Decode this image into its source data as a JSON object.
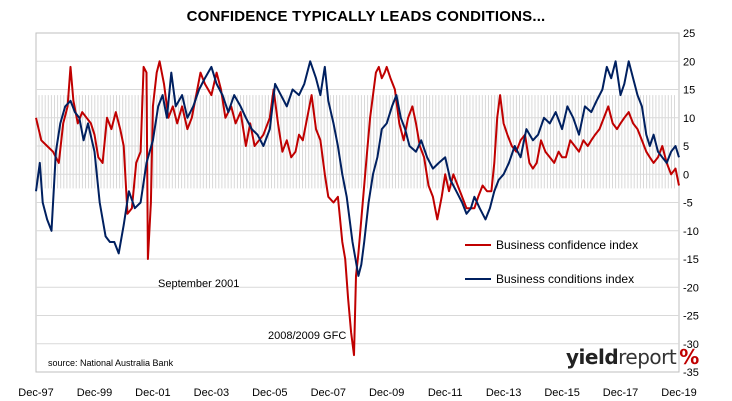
{
  "title": "CONFIDENCE TYPICALLY LEADS CONDITIONS...",
  "source": "source: National Australia Bank",
  "logo": {
    "yield": "yield",
    "report": "report",
    "pct": "%"
  },
  "annotations": {
    "sep2001": "September 2001",
    "gfc": "2008/2009 GFC"
  },
  "legend": {
    "confidence": "Business confidence index",
    "conditions": "Business conditions index"
  },
  "colors": {
    "confidence": "#c00000",
    "conditions": "#002060",
    "band": "#d9d9d9",
    "grid": "#d9d9d9",
    "logo_accent": "#c00000"
  },
  "chart_data": {
    "type": "line",
    "title": "CONFIDENCE TYPICALLY LEADS CONDITIONS...",
    "x_tick_labels": [
      "Dec-97",
      "Dec-99",
      "Dec-01",
      "Dec-03",
      "Dec-05",
      "Dec-07",
      "Dec-09",
      "Dec-11",
      "Dec-13",
      "Dec-15",
      "Dec-17",
      "Dec-19"
    ],
    "x_range": [
      1997.92,
      2019.92
    ],
    "ylim": [
      -35,
      25
    ],
    "y_ticks": [
      25,
      20,
      15,
      10,
      5,
      0,
      -5,
      -10,
      -15,
      -20,
      -25,
      -30,
      -35
    ],
    "grid": "horizontal",
    "legend_position": "right-center",
    "band_range": [
      -2.5,
      14
    ],
    "series": [
      {
        "name": "Business confidence index",
        "color": "#c00000",
        "points": [
          [
            1997.92,
            10
          ],
          [
            1998.1,
            6
          ],
          [
            1998.3,
            5
          ],
          [
            1998.5,
            4
          ],
          [
            1998.7,
            2
          ],
          [
            1998.85,
            9
          ],
          [
            1999.0,
            12
          ],
          [
            1999.1,
            19
          ],
          [
            1999.2,
            13
          ],
          [
            1999.35,
            9
          ],
          [
            1999.5,
            11
          ],
          [
            1999.65,
            10
          ],
          [
            1999.8,
            9
          ],
          [
            1999.92,
            7
          ],
          [
            2000.05,
            3
          ],
          [
            2000.2,
            2
          ],
          [
            2000.35,
            10
          ],
          [
            2000.5,
            8
          ],
          [
            2000.65,
            11
          ],
          [
            2000.8,
            8
          ],
          [
            2000.92,
            5
          ],
          [
            2001.05,
            -7
          ],
          [
            2001.2,
            -6
          ],
          [
            2001.35,
            2
          ],
          [
            2001.5,
            4
          ],
          [
            2001.6,
            19
          ],
          [
            2001.7,
            18
          ],
          [
            2001.75,
            -15
          ],
          [
            2001.85,
            -5
          ],
          [
            2001.92,
            12
          ],
          [
            2002.05,
            18
          ],
          [
            2002.15,
            20
          ],
          [
            2002.3,
            16
          ],
          [
            2002.45,
            10
          ],
          [
            2002.6,
            12
          ],
          [
            2002.75,
            9
          ],
          [
            2002.92,
            12
          ],
          [
            2003.1,
            8
          ],
          [
            2003.25,
            10
          ],
          [
            2003.4,
            14
          ],
          [
            2003.55,
            18
          ],
          [
            2003.7,
            16
          ],
          [
            2003.92,
            14
          ],
          [
            2004.1,
            18
          ],
          [
            2004.25,
            15
          ],
          [
            2004.4,
            10
          ],
          [
            2004.6,
            12
          ],
          [
            2004.75,
            9
          ],
          [
            2004.92,
            11
          ],
          [
            2005.1,
            5
          ],
          [
            2005.25,
            9
          ],
          [
            2005.4,
            5
          ],
          [
            2005.55,
            6
          ],
          [
            2005.7,
            7
          ],
          [
            2005.92,
            10
          ],
          [
            2006.05,
            15
          ],
          [
            2006.2,
            9
          ],
          [
            2006.35,
            4
          ],
          [
            2006.5,
            6
          ],
          [
            2006.65,
            3
          ],
          [
            2006.8,
            4
          ],
          [
            2006.92,
            7
          ],
          [
            2007.05,
            6
          ],
          [
            2007.2,
            10
          ],
          [
            2007.35,
            14
          ],
          [
            2007.5,
            8
          ],
          [
            2007.65,
            6
          ],
          [
            2007.8,
            0
          ],
          [
            2007.92,
            -4
          ],
          [
            2008.1,
            -5
          ],
          [
            2008.25,
            -4
          ],
          [
            2008.4,
            -12
          ],
          [
            2008.5,
            -15
          ],
          [
            2008.6,
            -22
          ],
          [
            2008.7,
            -28
          ],
          [
            2008.8,
            -32
          ],
          [
            2008.87,
            -18
          ],
          [
            2008.95,
            -14
          ],
          [
            2009.05,
            -8
          ],
          [
            2009.15,
            -2
          ],
          [
            2009.25,
            4
          ],
          [
            2009.35,
            10
          ],
          [
            2009.45,
            14
          ],
          [
            2009.55,
            18
          ],
          [
            2009.65,
            19
          ],
          [
            2009.75,
            17
          ],
          [
            2009.85,
            18
          ],
          [
            2009.92,
            19
          ],
          [
            2010.05,
            17
          ],
          [
            2010.2,
            15
          ],
          [
            2010.35,
            9
          ],
          [
            2010.5,
            6
          ],
          [
            2010.65,
            10
          ],
          [
            2010.8,
            12
          ],
          [
            2010.92,
            9
          ],
          [
            2011.05,
            5
          ],
          [
            2011.2,
            3
          ],
          [
            2011.35,
            -2
          ],
          [
            2011.5,
            -4
          ],
          [
            2011.65,
            -8
          ],
          [
            2011.8,
            -4
          ],
          [
            2011.92,
            0
          ],
          [
            2012.05,
            -3
          ],
          [
            2012.2,
            0
          ],
          [
            2012.35,
            -2
          ],
          [
            2012.5,
            -4
          ],
          [
            2012.65,
            -6
          ],
          [
            2012.8,
            -6
          ],
          [
            2012.92,
            -6
          ],
          [
            2013.05,
            -4
          ],
          [
            2013.2,
            -2
          ],
          [
            2013.35,
            -3
          ],
          [
            2013.5,
            -3
          ],
          [
            2013.6,
            2
          ],
          [
            2013.7,
            10
          ],
          [
            2013.8,
            14
          ],
          [
            2013.92,
            9
          ],
          [
            2014.05,
            7
          ],
          [
            2014.2,
            5
          ],
          [
            2014.35,
            4
          ],
          [
            2014.5,
            6
          ],
          [
            2014.65,
            7
          ],
          [
            2014.8,
            2
          ],
          [
            2014.92,
            1
          ],
          [
            2015.05,
            2
          ],
          [
            2015.2,
            6
          ],
          [
            2015.35,
            4
          ],
          [
            2015.5,
            3
          ],
          [
            2015.65,
            2
          ],
          [
            2015.8,
            4
          ],
          [
            2015.92,
            3
          ],
          [
            2016.05,
            3
          ],
          [
            2016.2,
            6
          ],
          [
            2016.35,
            5
          ],
          [
            2016.5,
            4
          ],
          [
            2016.65,
            6
          ],
          [
            2016.8,
            5
          ],
          [
            2016.92,
            6
          ],
          [
            2017.05,
            7
          ],
          [
            2017.2,
            8
          ],
          [
            2017.35,
            10
          ],
          [
            2017.5,
            12
          ],
          [
            2017.65,
            9
          ],
          [
            2017.8,
            8
          ],
          [
            2017.92,
            9
          ],
          [
            2018.05,
            10
          ],
          [
            2018.2,
            11
          ],
          [
            2018.35,
            9
          ],
          [
            2018.5,
            8
          ],
          [
            2018.65,
            6
          ],
          [
            2018.8,
            4
          ],
          [
            2018.92,
            3
          ],
          [
            2019.05,
            2
          ],
          [
            2019.2,
            3
          ],
          [
            2019.35,
            5
          ],
          [
            2019.5,
            2
          ],
          [
            2019.65,
            0
          ],
          [
            2019.8,
            1
          ],
          [
            2019.92,
            -2
          ]
        ]
      },
      {
        "name": "Business conditions index",
        "color": "#002060",
        "points": [
          [
            1997.92,
            -3
          ],
          [
            1998.05,
            2
          ],
          [
            1998.15,
            -5
          ],
          [
            1998.3,
            -8
          ],
          [
            1998.45,
            -10
          ],
          [
            1998.6,
            4
          ],
          [
            1998.75,
            9
          ],
          [
            1998.92,
            12
          ],
          [
            1999.1,
            13
          ],
          [
            1999.25,
            11
          ],
          [
            1999.4,
            10
          ],
          [
            1999.55,
            6
          ],
          [
            1999.7,
            9
          ],
          [
            1999.92,
            4
          ],
          [
            2000.1,
            -5
          ],
          [
            2000.3,
            -11
          ],
          [
            2000.45,
            -12
          ],
          [
            2000.6,
            -12
          ],
          [
            2000.75,
            -14
          ],
          [
            2000.92,
            -9
          ],
          [
            2001.1,
            -3
          ],
          [
            2001.3,
            -6
          ],
          [
            2001.5,
            -5
          ],
          [
            2001.7,
            2
          ],
          [
            2001.92,
            6
          ],
          [
            2002.1,
            12
          ],
          [
            2002.25,
            14
          ],
          [
            2002.4,
            10
          ],
          [
            2002.55,
            18
          ],
          [
            2002.7,
            12
          ],
          [
            2002.92,
            14
          ],
          [
            2003.1,
            10
          ],
          [
            2003.3,
            12
          ],
          [
            2003.5,
            15
          ],
          [
            2003.7,
            17
          ],
          [
            2003.92,
            19
          ],
          [
            2004.1,
            16
          ],
          [
            2004.3,
            14
          ],
          [
            2004.5,
            11
          ],
          [
            2004.7,
            14
          ],
          [
            2004.92,
            12
          ],
          [
            2005.1,
            10
          ],
          [
            2005.3,
            8
          ],
          [
            2005.5,
            7
          ],
          [
            2005.7,
            5
          ],
          [
            2005.92,
            8
          ],
          [
            2006.1,
            16
          ],
          [
            2006.3,
            14
          ],
          [
            2006.5,
            12
          ],
          [
            2006.7,
            15
          ],
          [
            2006.92,
            14
          ],
          [
            2007.1,
            16
          ],
          [
            2007.3,
            20
          ],
          [
            2007.5,
            17
          ],
          [
            2007.65,
            14
          ],
          [
            2007.8,
            19
          ],
          [
            2007.92,
            13
          ],
          [
            2008.1,
            9
          ],
          [
            2008.25,
            5
          ],
          [
            2008.4,
            0
          ],
          [
            2008.55,
            -4
          ],
          [
            2008.65,
            -8
          ],
          [
            2008.75,
            -12
          ],
          [
            2008.85,
            -15
          ],
          [
            2008.95,
            -18
          ],
          [
            2009.05,
            -16
          ],
          [
            2009.15,
            -12
          ],
          [
            2009.3,
            -5
          ],
          [
            2009.45,
            0
          ],
          [
            2009.6,
            3
          ],
          [
            2009.75,
            8
          ],
          [
            2009.92,
            9
          ],
          [
            2010.1,
            12
          ],
          [
            2010.25,
            14
          ],
          [
            2010.4,
            10
          ],
          [
            2010.55,
            8
          ],
          [
            2010.7,
            5
          ],
          [
            2010.92,
            4
          ],
          [
            2011.1,
            6
          ],
          [
            2011.3,
            3
          ],
          [
            2011.5,
            1
          ],
          [
            2011.7,
            2
          ],
          [
            2011.92,
            3
          ],
          [
            2012.1,
            -1
          ],
          [
            2012.3,
            -3
          ],
          [
            2012.5,
            -5
          ],
          [
            2012.65,
            -7
          ],
          [
            2012.8,
            -6
          ],
          [
            2012.92,
            -4
          ],
          [
            2013.1,
            -6
          ],
          [
            2013.3,
            -8
          ],
          [
            2013.45,
            -6
          ],
          [
            2013.6,
            -3
          ],
          [
            2013.75,
            -1
          ],
          [
            2013.92,
            0
          ],
          [
            2014.1,
            2
          ],
          [
            2014.3,
            5
          ],
          [
            2014.5,
            3
          ],
          [
            2014.7,
            8
          ],
          [
            2014.92,
            6
          ],
          [
            2015.1,
            7
          ],
          [
            2015.3,
            10
          ],
          [
            2015.5,
            9
          ],
          [
            2015.7,
            11
          ],
          [
            2015.92,
            8
          ],
          [
            2016.1,
            12
          ],
          [
            2016.3,
            10
          ],
          [
            2016.5,
            7
          ],
          [
            2016.7,
            12
          ],
          [
            2016.92,
            11
          ],
          [
            2017.1,
            13
          ],
          [
            2017.3,
            15
          ],
          [
            2017.45,
            19
          ],
          [
            2017.6,
            17
          ],
          [
            2017.75,
            20
          ],
          [
            2017.92,
            14
          ],
          [
            2018.05,
            16
          ],
          [
            2018.2,
            20
          ],
          [
            2018.35,
            17
          ],
          [
            2018.5,
            14
          ],
          [
            2018.65,
            12
          ],
          [
            2018.8,
            7
          ],
          [
            2018.92,
            5
          ],
          [
            2019.05,
            7
          ],
          [
            2019.2,
            4
          ],
          [
            2019.35,
            3
          ],
          [
            2019.5,
            2
          ],
          [
            2019.65,
            4
          ],
          [
            2019.8,
            5
          ],
          [
            2019.92,
            3
          ]
        ]
      }
    ]
  }
}
